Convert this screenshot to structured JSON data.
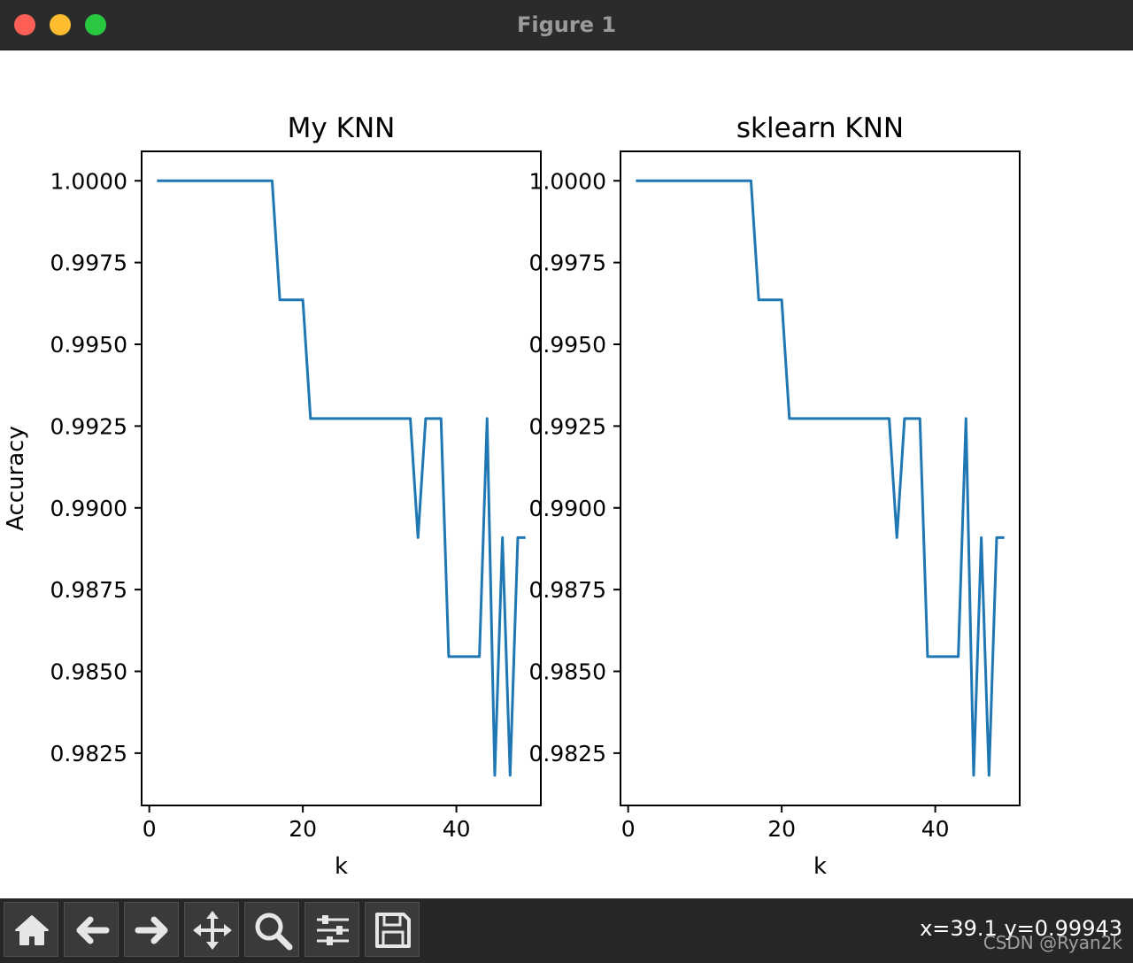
{
  "window": {
    "title": "Figure 1"
  },
  "chart_data": [
    {
      "type": "line",
      "title": "My KNN",
      "xlabel": "k",
      "ylabel": "Accuracy",
      "x": [
        1,
        2,
        3,
        4,
        5,
        6,
        7,
        8,
        9,
        10,
        11,
        12,
        13,
        14,
        15,
        16,
        17,
        18,
        19,
        20,
        21,
        22,
        23,
        24,
        25,
        26,
        27,
        28,
        29,
        30,
        31,
        32,
        33,
        34,
        35,
        36,
        37,
        38,
        39,
        40,
        41,
        42,
        43,
        44,
        45,
        46,
        47,
        48,
        49
      ],
      "series": [
        {
          "values": [
            1.0,
            1.0,
            1.0,
            1.0,
            1.0,
            1.0,
            1.0,
            1.0,
            1.0,
            1.0,
            1.0,
            1.0,
            1.0,
            1.0,
            1.0,
            1.0,
            0.99636,
            0.99636,
            0.99636,
            0.99636,
            0.99273,
            0.99273,
            0.99273,
            0.99273,
            0.99273,
            0.99273,
            0.99273,
            0.99273,
            0.99273,
            0.99273,
            0.99273,
            0.99273,
            0.99273,
            0.99273,
            0.98909,
            0.99273,
            0.99273,
            0.99273,
            0.98545,
            0.98545,
            0.98545,
            0.98545,
            0.98545,
            0.99273,
            0.98182,
            0.98909,
            0.98182,
            0.98909,
            0.98909
          ],
          "color": "#1f77b4"
        }
      ],
      "xlim": [
        -1,
        51
      ],
      "ylim": [
        0.9809,
        1.0009
      ],
      "xticks": [
        0,
        20,
        40
      ],
      "yticks": [
        1.0,
        0.9975,
        0.995,
        0.9925,
        0.99,
        0.9875,
        0.985,
        0.9825
      ],
      "ytick_labels": [
        "1.0000",
        "0.9975",
        "0.9950",
        "0.9925",
        "0.9900",
        "0.9875",
        "0.9850",
        "0.9825"
      ],
      "grid": false
    },
    {
      "type": "line",
      "title": "sklearn KNN",
      "xlabel": "k",
      "x": [
        1,
        2,
        3,
        4,
        5,
        6,
        7,
        8,
        9,
        10,
        11,
        12,
        13,
        14,
        15,
        16,
        17,
        18,
        19,
        20,
        21,
        22,
        23,
        24,
        25,
        26,
        27,
        28,
        29,
        30,
        31,
        32,
        33,
        34,
        35,
        36,
        37,
        38,
        39,
        40,
        41,
        42,
        43,
        44,
        45,
        46,
        47,
        48,
        49
      ],
      "series": [
        {
          "values": [
            1.0,
            1.0,
            1.0,
            1.0,
            1.0,
            1.0,
            1.0,
            1.0,
            1.0,
            1.0,
            1.0,
            1.0,
            1.0,
            1.0,
            1.0,
            1.0,
            0.99636,
            0.99636,
            0.99636,
            0.99636,
            0.99273,
            0.99273,
            0.99273,
            0.99273,
            0.99273,
            0.99273,
            0.99273,
            0.99273,
            0.99273,
            0.99273,
            0.99273,
            0.99273,
            0.99273,
            0.99273,
            0.98909,
            0.99273,
            0.99273,
            0.99273,
            0.98545,
            0.98545,
            0.98545,
            0.98545,
            0.98545,
            0.99273,
            0.98182,
            0.98909,
            0.98182,
            0.98909,
            0.98909
          ],
          "color": "#1f77b4"
        }
      ],
      "xlim": [
        -1,
        51
      ],
      "ylim": [
        0.9809,
        1.0009
      ],
      "xticks": [
        0,
        20,
        40
      ],
      "yticks": [
        1.0,
        0.9975,
        0.995,
        0.9925,
        0.99,
        0.9875,
        0.985,
        0.9825
      ],
      "ytick_labels": [
        "1.0000",
        "0.9975",
        "0.9950",
        "0.9925",
        "0.9900",
        "0.9875",
        "0.9850",
        "0.9825"
      ],
      "grid": false
    }
  ],
  "toolbar": {
    "buttons": [
      {
        "name": "home-button",
        "icon": "home-icon"
      },
      {
        "name": "back-button",
        "icon": "arrow-left-icon"
      },
      {
        "name": "forward-button",
        "icon": "arrow-right-icon"
      },
      {
        "name": "pan-button",
        "icon": "move-icon"
      },
      {
        "name": "zoom-button",
        "icon": "magnifier-icon"
      },
      {
        "name": "configure-subplots-button",
        "icon": "sliders-icon"
      },
      {
        "name": "save-button",
        "icon": "floppy-icon"
      }
    ],
    "coords": "x=39.1 y=0.99943",
    "watermark": "CSDN @Ryan2k"
  }
}
